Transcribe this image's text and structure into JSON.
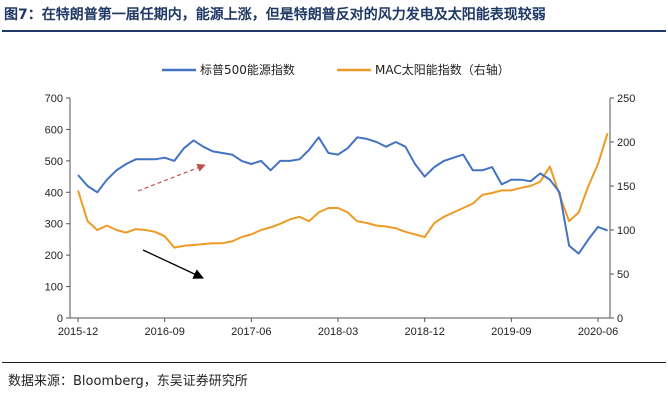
{
  "title": "图7：在特朗普第一届任期内，能源上涨，但是特朗普反对的风力发电及太阳能表现较弱",
  "source": "数据来源：Bloomberg，东吴证券研究所",
  "colors": {
    "title": "#1f3864",
    "sp500": "#4472c4",
    "mac": "#ed9b26",
    "arrow_red": "#c0504d",
    "arrow_black": "#000000"
  },
  "chart_data": {
    "type": "line",
    "grid": false,
    "legend_position": "top",
    "x_tick_labels": [
      "2015-12",
      "2016-09",
      "2017-06",
      "2018-03",
      "2018-12",
      "2019-09",
      "2020-06"
    ],
    "y_left": {
      "min": 0,
      "max": 700,
      "ticks": [
        0,
        100,
        200,
        300,
        400,
        500,
        600,
        700
      ]
    },
    "y_right": {
      "min": 0,
      "max": 250,
      "ticks": [
        0,
        50,
        100,
        150,
        200,
        250
      ]
    },
    "series": [
      {
        "name": "标普500能源指数",
        "axis": "left",
        "color": "#4472c4",
        "x": [
          "2015-12",
          "2016-01",
          "2016-02",
          "2016-03",
          "2016-04",
          "2016-05",
          "2016-06",
          "2016-07",
          "2016-08",
          "2016-09",
          "2016-10",
          "2016-11",
          "2016-12",
          "2017-01",
          "2017-02",
          "2017-03",
          "2017-04",
          "2017-05",
          "2017-06",
          "2017-07",
          "2017-08",
          "2017-09",
          "2017-10",
          "2017-11",
          "2017-12",
          "2018-01",
          "2018-02",
          "2018-03",
          "2018-04",
          "2018-05",
          "2018-06",
          "2018-07",
          "2018-08",
          "2018-09",
          "2018-10",
          "2018-11",
          "2018-12",
          "2019-01",
          "2019-02",
          "2019-03",
          "2019-04",
          "2019-05",
          "2019-06",
          "2019-07",
          "2019-08",
          "2019-09",
          "2019-10",
          "2019-11",
          "2019-12",
          "2020-01",
          "2020-02",
          "2020-03",
          "2020-04",
          "2020-05",
          "2020-06",
          "2020-07"
        ],
        "values": [
          455,
          420,
          400,
          440,
          470,
          490,
          505,
          505,
          505,
          510,
          500,
          540,
          565,
          545,
          530,
          525,
          520,
          500,
          490,
          500,
          470,
          500,
          500,
          505,
          535,
          575,
          525,
          520,
          540,
          575,
          570,
          560,
          545,
          560,
          545,
          490,
          450,
          480,
          500,
          510,
          520,
          470,
          470,
          480,
          425,
          440,
          440,
          435,
          460,
          440,
          400,
          230,
          205,
          250,
          290,
          278
        ]
      },
      {
        "name": "MAC太阳能指数（右轴）",
        "axis": "right",
        "color": "#ed9b26",
        "x": [
          "2015-12",
          "2016-01",
          "2016-02",
          "2016-03",
          "2016-04",
          "2016-05",
          "2016-06",
          "2016-07",
          "2016-08",
          "2016-09",
          "2016-10",
          "2016-11",
          "2016-12",
          "2017-01",
          "2017-02",
          "2017-03",
          "2017-04",
          "2017-05",
          "2017-06",
          "2017-07",
          "2017-08",
          "2017-09",
          "2017-10",
          "2017-11",
          "2017-12",
          "2018-01",
          "2018-02",
          "2018-03",
          "2018-04",
          "2018-05",
          "2018-06",
          "2018-07",
          "2018-08",
          "2018-09",
          "2018-10",
          "2018-11",
          "2018-12",
          "2019-01",
          "2019-02",
          "2019-03",
          "2019-04",
          "2019-05",
          "2019-06",
          "2019-07",
          "2019-08",
          "2019-09",
          "2019-10",
          "2019-11",
          "2019-12",
          "2020-01",
          "2020-02",
          "2020-03",
          "2020-04",
          "2020-05",
          "2020-06",
          "2020-07"
        ],
        "values": [
          145,
          110,
          100,
          105,
          100,
          97,
          101,
          100,
          98,
          93,
          80,
          82,
          83,
          84,
          85,
          85,
          87,
          92,
          95,
          100,
          103,
          107,
          112,
          115,
          110,
          120,
          125,
          125,
          120,
          110,
          108,
          105,
          104,
          102,
          98,
          95,
          92,
          108,
          115,
          120,
          125,
          130,
          140,
          142,
          145,
          145,
          148,
          150,
          155,
          172,
          140,
          110,
          120,
          150,
          175,
          210
        ]
      }
    ],
    "annotations": [
      {
        "type": "arrow",
        "style": "dashed",
        "color": "#c0504d"
      },
      {
        "type": "arrow",
        "style": "solid",
        "color": "#000000"
      }
    ]
  }
}
